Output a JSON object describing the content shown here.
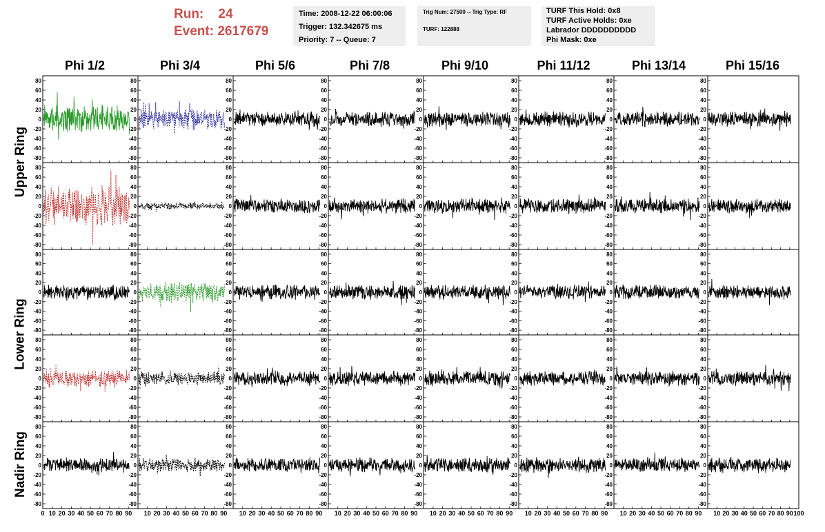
{
  "header": {
    "run_label": "Run:",
    "run_value": "24",
    "event_label": "Event:",
    "event_value": "2617679",
    "time_line": "Time: 2008-12-22 06:00:06",
    "trigger_line": "Trigger: 132.342675 ms",
    "priority_line": "Priority: 7 -- Queue: 7",
    "trig_line": "Trig Num: 27500 -- Trig Type: RF",
    "turf_line": "TURF: 122888",
    "turf_hold_line": "TURF This Hold: 0x8",
    "turf_active_line": "TURF Active Holds: 0xe",
    "labrador_line": "Labrador DDDDDDDDDD",
    "phi_mask_line": "Phi Mask: 0xe"
  },
  "columns": [
    "Phi 1/2",
    "Phi 3/4",
    "Phi 5/6",
    "Phi 7/8",
    "Phi 9/10",
    "Phi 11/12",
    "Phi 13/14",
    "Phi 15/16"
  ],
  "rows": [
    {
      "label": "Upper Ring",
      "span": 2
    },
    {
      "label": "Lower Ring",
      "span": 2
    },
    {
      "label": "Nadir Ring",
      "span": 1
    }
  ],
  "chart_data": {
    "type": "line",
    "panel_rows": 5,
    "panel_cols": 8,
    "xlim": [
      0,
      100
    ],
    "ylim": [
      -90,
      90
    ],
    "y_ticks": [
      80,
      60,
      40,
      20,
      0,
      -20,
      -40,
      -60,
      -80
    ],
    "x_ticks": [
      0,
      10,
      20,
      30,
      40,
      50,
      60,
      70,
      80,
      90,
      100
    ],
    "grid": false,
    "colors": {
      "default": "#000000",
      "green": "#2a9a2a",
      "blue": "#2a2aa0",
      "red": "#c0302c"
    },
    "highlighted": [
      {
        "row": 0,
        "col": 0,
        "color": "green",
        "style": "solid",
        "amplitude": 22
      },
      {
        "row": 0,
        "col": 1,
        "color": "blue",
        "style": "dashed",
        "amplitude": 17
      },
      {
        "row": 1,
        "col": 0,
        "color": "red",
        "style": "dashed",
        "amplitude": 32
      },
      {
        "row": 1,
        "col": 1,
        "color": "default",
        "style": "dashed",
        "amplitude": 6
      },
      {
        "row": 2,
        "col": 1,
        "color": "green",
        "style": "dashed",
        "amplitude": 17
      },
      {
        "row": 3,
        "col": 0,
        "color": "red",
        "style": "dashed",
        "amplitude": 14
      },
      {
        "row": 3,
        "col": 1,
        "color": "default",
        "style": "dashed",
        "amplitude": 11
      },
      {
        "row": 4,
        "col": 1,
        "color": "default",
        "style": "dashed",
        "amplitude": 11
      }
    ],
    "default_amplitude": 12
  }
}
